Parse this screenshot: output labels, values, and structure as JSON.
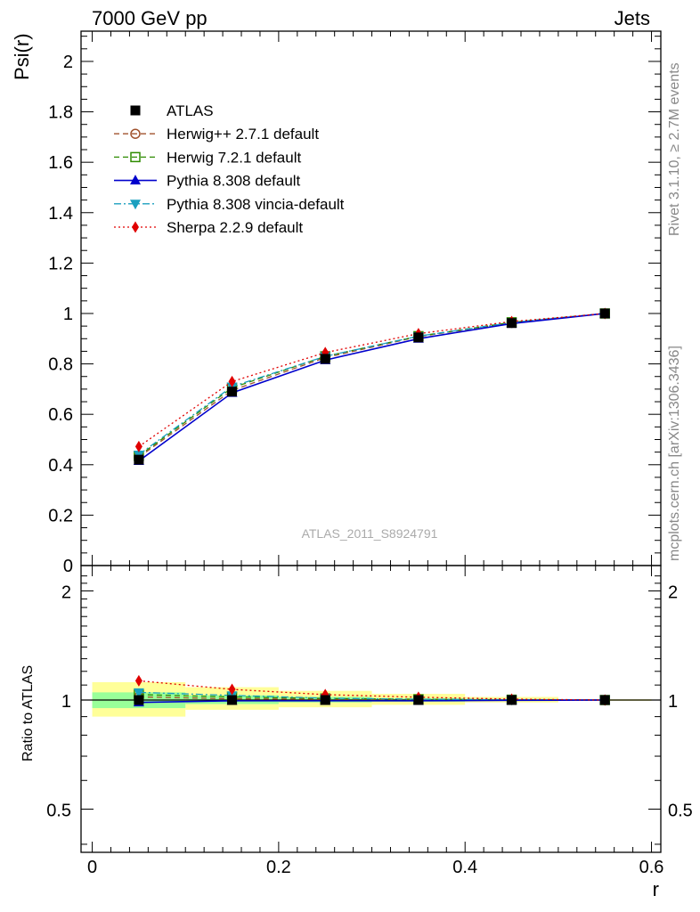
{
  "header": {
    "energy_label": "7000 GeV pp",
    "category_label": "Jets"
  },
  "side_labels": {
    "rivet": "Rivet 3.1.10, ≥ 2.7M events",
    "source": "mcplots.cern.ch [arXiv:1306.3436]"
  },
  "watermark": "ATLAS_2011_S8924791",
  "chart_data": [
    {
      "type": "line",
      "ylabel": "Psi(r)",
      "xlabel": "r",
      "xlim": [
        -0.012,
        0.61
      ],
      "ylim": [
        0,
        2.12
      ],
      "x_ticks": [
        0,
        0.2,
        0.4,
        0.6
      ],
      "x_tick_labels": [
        "0",
        "0.2",
        "0.4",
        "0.6"
      ],
      "y_ticks": [
        0,
        0.2,
        0.4,
        0.6,
        0.8,
        1,
        1.2,
        1.4,
        1.6,
        1.8,
        2
      ],
      "y_tick_labels": [
        "0",
        "0.2",
        "0.4",
        "0.6",
        "0.8",
        "1",
        "1.2",
        "1.4",
        "1.6",
        "1.8",
        "2"
      ],
      "legend_position": "top-left",
      "x": [
        0.05,
        0.15,
        0.25,
        0.35,
        0.45,
        0.55
      ],
      "series": [
        {
          "name": "ATLAS",
          "color": "#000000",
          "marker": "square-filled",
          "line": "none",
          "values": [
            0.42,
            0.69,
            0.82,
            0.905,
            0.962,
            1.0
          ]
        },
        {
          "name": "Herwig++ 2.7.1 default",
          "color": "#a0522d",
          "marker": "circle-open",
          "line": "dashed",
          "values": [
            0.43,
            0.695,
            0.825,
            0.908,
            0.963,
            1.0
          ]
        },
        {
          "name": "Herwig 7.2.1 default",
          "color": "#2e8b00",
          "marker": "square-open",
          "line": "dashed",
          "values": [
            0.435,
            0.705,
            0.83,
            0.91,
            0.965,
            1.0
          ]
        },
        {
          "name": "Pythia 8.308 default",
          "color": "#0000cc",
          "marker": "triangle-up",
          "line": "solid",
          "values": [
            0.415,
            0.685,
            0.815,
            0.9,
            0.96,
            1.0
          ]
        },
        {
          "name": "Pythia 8.308 vincia-default",
          "color": "#1a9fbf",
          "marker": "triangle-down",
          "line": "dashdot",
          "values": [
            0.44,
            0.71,
            0.83,
            0.91,
            0.964,
            1.0
          ]
        },
        {
          "name": "Sherpa 2.2.9 default",
          "color": "#e00000",
          "marker": "diamond",
          "line": "dotted",
          "values": [
            0.472,
            0.73,
            0.845,
            0.92,
            0.968,
            1.0
          ]
        }
      ]
    },
    {
      "type": "line",
      "ylabel": "Ratio to ATLAS",
      "xlabel": "r",
      "xlim": [
        -0.012,
        0.61
      ],
      "y_scale": "log",
      "ylim": [
        0.38,
        2.35
      ],
      "y_ticks": [
        0.5,
        1,
        2
      ],
      "y_tick_labels": [
        "0.5",
        "1",
        "2"
      ],
      "x": [
        0.05,
        0.15,
        0.25,
        0.35,
        0.45,
        0.55
      ],
      "bins": [
        [
          0,
          0.1
        ],
        [
          0.1,
          0.2
        ],
        [
          0.2,
          0.3
        ],
        [
          0.3,
          0.4
        ],
        [
          0.4,
          0.5
        ],
        [
          0.5,
          0.6
        ]
      ],
      "band_outer": {
        "color": "#ffff99",
        "low": [
          0.9,
          0.94,
          0.955,
          0.97,
          0.985,
          0.995
        ],
        "high": [
          1.12,
          1.085,
          1.06,
          1.04,
          1.02,
          1.005
        ]
      },
      "band_inner": {
        "color": "#99ff99",
        "low": [
          0.95,
          0.975,
          0.985,
          0.99,
          0.995,
          0.998
        ],
        "high": [
          1.05,
          1.03,
          1.02,
          1.01,
          1.005,
          1.002
        ]
      },
      "series": [
        {
          "name": "Herwig++ 2.7.1 default",
          "values": [
            1.02,
            1.008,
            1.005,
            1.003,
            1.001,
            1.0
          ]
        },
        {
          "name": "Herwig 7.2.1 default",
          "values": [
            1.035,
            1.02,
            1.01,
            1.005,
            1.002,
            1.0
          ]
        },
        {
          "name": "Pythia 8.308 default",
          "values": [
            0.985,
            0.995,
            0.995,
            0.995,
            0.998,
            1.0
          ]
        },
        {
          "name": "Pythia 8.308 vincia-default",
          "values": [
            1.05,
            1.03,
            1.012,
            1.005,
            1.002,
            1.0
          ]
        },
        {
          "name": "Sherpa 2.2.9 default",
          "values": [
            1.13,
            1.07,
            1.035,
            1.018,
            1.006,
            1.0
          ]
        }
      ]
    }
  ]
}
